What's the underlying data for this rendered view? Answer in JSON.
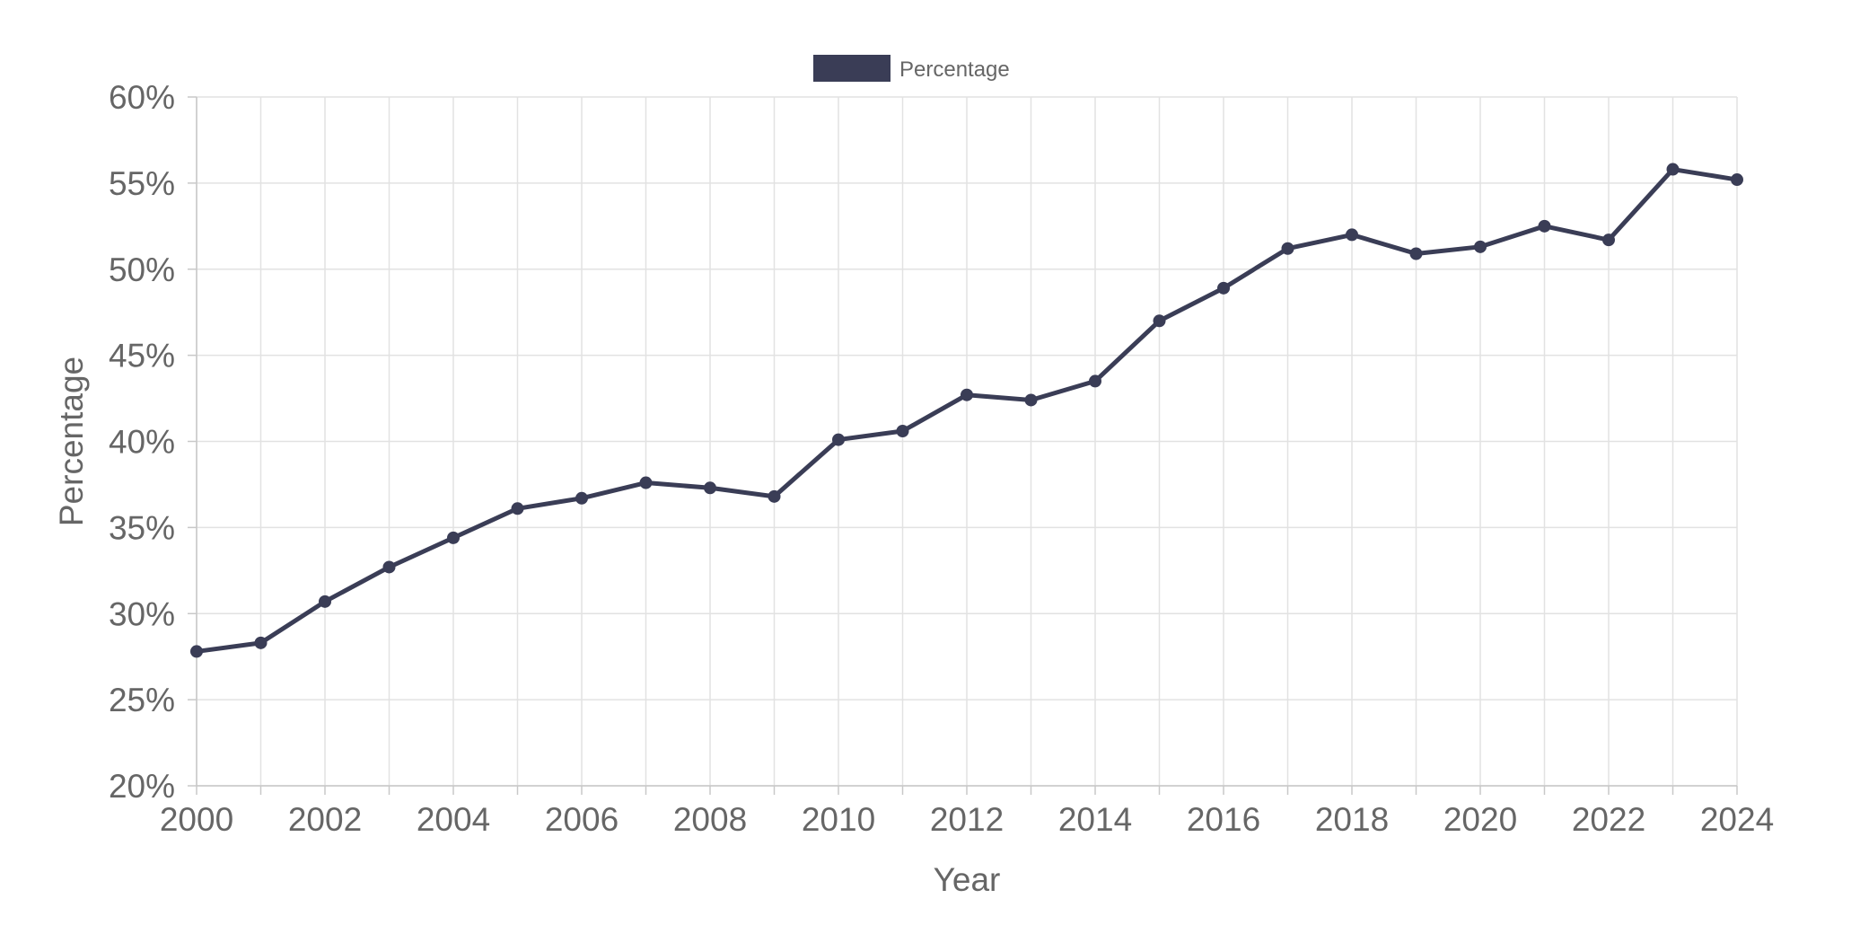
{
  "chart_data": {
    "type": "line",
    "xlabel": "Year",
    "ylabel": "Percentage",
    "ylim": [
      20,
      60
    ],
    "xlim": [
      2000,
      2024
    ],
    "y_tick_step": 5,
    "x_tick_step": 2,
    "y_tick_suffix": "%",
    "grid": true,
    "legend_position": "top-center",
    "series": [
      {
        "name": "Percentage",
        "color": "#3a3d56",
        "x": [
          2000,
          2001,
          2002,
          2003,
          2004,
          2005,
          2006,
          2007,
          2008,
          2009,
          2010,
          2011,
          2012,
          2013,
          2014,
          2015,
          2016,
          2017,
          2018,
          2019,
          2020,
          2021,
          2022,
          2023,
          2024
        ],
        "values": [
          27.8,
          28.3,
          30.7,
          32.7,
          34.4,
          36.1,
          36.7,
          37.6,
          37.3,
          36.8,
          40.1,
          40.6,
          42.7,
          42.4,
          43.5,
          47.0,
          48.9,
          51.2,
          52.0,
          50.9,
          51.3,
          52.5,
          51.7,
          55.8,
          55.2
        ]
      }
    ]
  }
}
